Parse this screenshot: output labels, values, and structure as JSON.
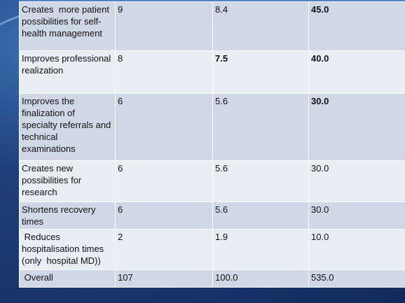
{
  "table": {
    "rows": [
      [
        "Creates  more patient possibilities for self-health management",
        "9",
        "8.4",
        "45.0"
      ],
      [
        "Improves professional realization",
        "8",
        "7.5",
        "40.0"
      ],
      [
        "Improves the finalization of specialty referrals and  technical examinations",
        "6",
        "5.6",
        "30.0"
      ],
      [
        "Creates new possibilities for research",
        "6",
        "5.6",
        "30.0"
      ],
      [
        "Shortens recovery times",
        "6",
        "5.6",
        "30.0"
      ],
      [
        " Reduces hospitalisation times (only  hospital MD))",
        "2",
        "1.9",
        "10.0"
      ],
      [
        " Overall",
        "107",
        "100.0",
        "535.0"
      ]
    ]
  }
}
